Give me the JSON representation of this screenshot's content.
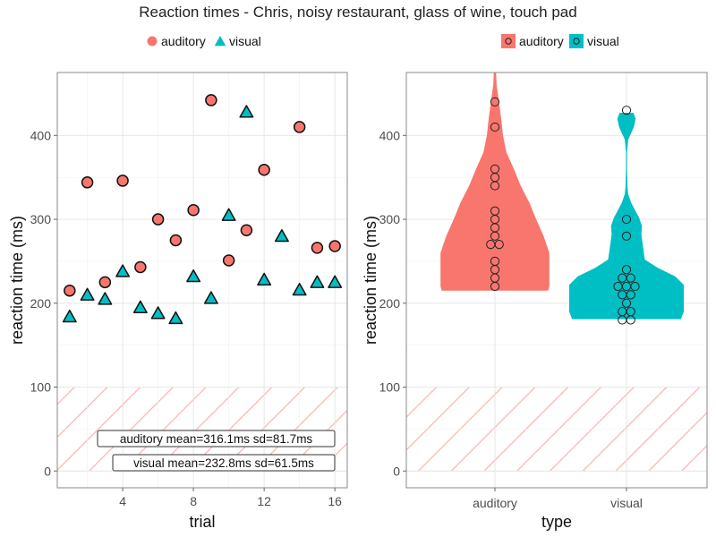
{
  "chart_data": [
    {
      "type": "scatter",
      "title": "Reaction times - Chris, noisy restaurant, glass of wine, touch pad",
      "xlabel": "trial",
      "ylabel": "reaction time (ms)",
      "xlim": [
        0.3,
        16.7
      ],
      "ylim": [
        -20,
        475
      ],
      "x_ticks": [
        4,
        8,
        12,
        16
      ],
      "y_ticks": [
        0,
        100,
        200,
        300,
        400
      ],
      "grid": true,
      "legend_position": "top",
      "series": [
        {
          "name": "auditory",
          "shape": "circle",
          "color": "#F8766D",
          "points": [
            [
              1,
              215
            ],
            [
              2,
              344
            ],
            [
              3,
              225
            ],
            [
              4,
              346
            ],
            [
              5,
              243
            ],
            [
              6,
              300
            ],
            [
              7,
              275
            ],
            [
              8,
              311
            ],
            [
              9,
              442
            ],
            [
              10,
              251
            ],
            [
              11,
              287
            ],
            [
              12,
              359
            ],
            [
              14,
              410
            ],
            [
              15,
              266
            ],
            [
              16,
              268
            ]
          ]
        },
        {
          "name": "visual",
          "shape": "triangle",
          "color": "#00BFC4",
          "points": [
            [
              1,
              183
            ],
            [
              2,
              209
            ],
            [
              3,
              204
            ],
            [
              4,
              237
            ],
            [
              5,
              194
            ],
            [
              6,
              187
            ],
            [
              7,
              181
            ],
            [
              8,
              231
            ],
            [
              9,
              205
            ],
            [
              10,
              304
            ],
            [
              11,
              427
            ],
            [
              12,
              227
            ],
            [
              13,
              279
            ],
            [
              14,
              215
            ],
            [
              15,
              224
            ],
            [
              16,
              224
            ]
          ]
        }
      ],
      "hatched_band": {
        "from": 0,
        "to": 100
      },
      "annotations": [
        "auditory mean=316.1ms sd=81.7ms",
        "visual mean=232.8ms sd=61.5ms"
      ]
    },
    {
      "type": "violin",
      "title": "",
      "xlabel": "type",
      "ylabel": "reaction time (ms)",
      "categories": [
        "auditory",
        "visual"
      ],
      "ylim": [
        -20,
        475
      ],
      "y_ticks": [
        0,
        100,
        200,
        300,
        400
      ],
      "grid": true,
      "legend_position": "top",
      "series": [
        {
          "name": "auditory",
          "color": "#F8766D",
          "values": [
            215,
            344,
            225,
            346,
            243,
            300,
            275,
            311,
            442,
            251,
            287,
            359,
            410,
            266,
            268
          ],
          "density": [
            [
              215,
              0.93
            ],
            [
              220,
              0.95
            ],
            [
              240,
              0.95
            ],
            [
              260,
              0.95
            ],
            [
              280,
              0.85
            ],
            [
              300,
              0.72
            ],
            [
              320,
              0.6
            ],
            [
              340,
              0.45
            ],
            [
              360,
              0.33
            ],
            [
              380,
              0.2
            ],
            [
              400,
              0.14
            ],
            [
              420,
              0.11
            ],
            [
              440,
              0.07
            ],
            [
              460,
              0.03
            ],
            [
              475,
              0.02
            ]
          ]
        },
        {
          "name": "visual",
          "color": "#00BFC4",
          "values": [
            183,
            209,
            204,
            237,
            194,
            187,
            181,
            231,
            205,
            304,
            427,
            227,
            279,
            215,
            224,
            224
          ],
          "density": [
            [
              181,
              0.95
            ],
            [
              190,
              1.0
            ],
            [
              200,
              1.0
            ],
            [
              212,
              1.0
            ],
            [
              222,
              1.0
            ],
            [
              232,
              0.85
            ],
            [
              242,
              0.55
            ],
            [
              252,
              0.32
            ],
            [
              262,
              0.3
            ],
            [
              272,
              0.28
            ],
            [
              282,
              0.26
            ],
            [
              292,
              0.27
            ],
            [
              302,
              0.22
            ],
            [
              312,
              0.14
            ],
            [
              320,
              0.08
            ],
            [
              330,
              0.03
            ],
            [
              340,
              0.015
            ],
            [
              360,
              0.01
            ],
            [
              380,
              0.01
            ],
            [
              395,
              0.03
            ],
            [
              410,
              0.13
            ],
            [
              420,
              0.16
            ],
            [
              427,
              0.12
            ]
          ]
        }
      ],
      "hatched_band": {
        "from": 0,
        "to": 100
      }
    }
  ]
}
